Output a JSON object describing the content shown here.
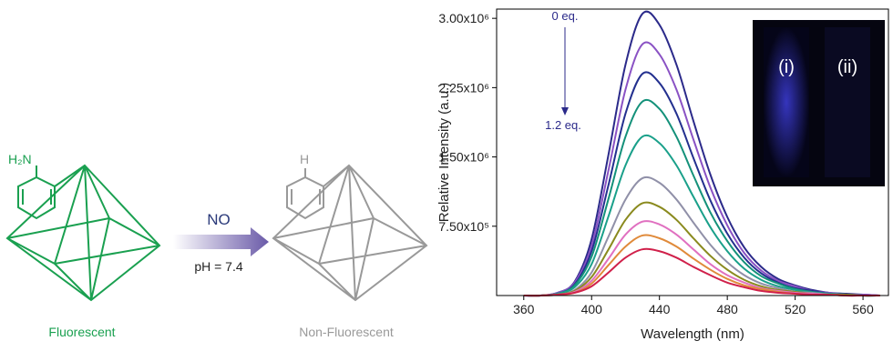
{
  "diagram": {
    "amine_label": "H₂N",
    "left_caption": "Fluorescent",
    "reagent": "NO",
    "condition": "pH = 7.4",
    "h_label": "H",
    "right_caption": "Non-Fluorescent"
  },
  "chart_data": {
    "type": "line",
    "x_label": "Wavelength (nm)",
    "y_label": "Relative Intensity (a.u.)",
    "annotations": [
      "0 eq.",
      "1.2 eq.",
      "(i)",
      "(ii)"
    ],
    "x": [
      360,
      370,
      380,
      390,
      400,
      410,
      420,
      430,
      440,
      450,
      460,
      470,
      480,
      490,
      500,
      510,
      520,
      530,
      540,
      550,
      560,
      570
    ],
    "xlim": [
      344,
      575
    ],
    "xticks": [
      360,
      400,
      440,
      480,
      520,
      560
    ],
    "ylim": [
      0,
      3100000
    ],
    "yticks": [
      {
        "value": 750000,
        "label": "7.50x10⁵"
      },
      {
        "value": 1500000,
        "label": "1.50x10⁶"
      },
      {
        "value": 2250000,
        "label": "2.25x10⁶"
      },
      {
        "value": 3000000,
        "label": "3.00x10⁶"
      }
    ],
    "series": [
      {
        "color": "#2b2a8a",
        "values": [
          0,
          0,
          30000,
          150000,
          610000,
          1530000,
          2500000,
          3050000,
          2930000,
          2500000,
          1890000,
          1310000,
          850000,
          520000,
          310000,
          180000,
          110000,
          60000,
          30000,
          20000,
          10000,
          0
        ]
      },
      {
        "color": "#8a52c4",
        "values": [
          0,
          0,
          30000,
          140000,
          540000,
          1360000,
          2230000,
          2720000,
          2610000,
          2230000,
          1690000,
          1170000,
          760000,
          460000,
          270000,
          160000,
          100000,
          50000,
          30000,
          10000,
          10000,
          0
        ]
      },
      {
        "color": "#23308f",
        "values": [
          0,
          0,
          20000,
          120000,
          480000,
          1200000,
          1970000,
          2400000,
          2300000,
          1970000,
          1490000,
          1030000,
          670000,
          410000,
          240000,
          140000,
          80000,
          50000,
          20000,
          10000,
          0,
          0
        ]
      },
      {
        "color": "#14917a",
        "values": [
          0,
          0,
          20000,
          110000,
          420000,
          1050000,
          1720000,
          2100000,
          2020000,
          1720000,
          1300000,
          900000,
          590000,
          360000,
          210000,
          130000,
          70000,
          40000,
          20000,
          10000,
          0,
          0
        ]
      },
      {
        "color": "#1aa08a",
        "values": [
          0,
          0,
          20000,
          90000,
          340000,
          860000,
          1410000,
          1720000,
          1650000,
          1410000,
          1070000,
          740000,
          480000,
          290000,
          170000,
          100000,
          60000,
          30000,
          20000,
          10000,
          0,
          0
        ]
      },
      {
        "color": "#9090a8",
        "values": [
          0,
          0,
          10000,
          60000,
          250000,
          640000,
          1040000,
          1270000,
          1220000,
          1040000,
          790000,
          550000,
          360000,
          220000,
          130000,
          80000,
          40000,
          30000,
          10000,
          10000,
          0,
          0
        ]
      },
      {
        "color": "#8a8a1e",
        "values": [
          0,
          0,
          10000,
          50000,
          200000,
          500000,
          820000,
          1000000,
          960000,
          820000,
          620000,
          430000,
          280000,
          170000,
          100000,
          60000,
          40000,
          20000,
          10000,
          10000,
          0,
          0
        ]
      },
      {
        "color": "#e070c0",
        "values": [
          0,
          0,
          10000,
          40000,
          160000,
          400000,
          660000,
          800000,
          770000,
          660000,
          500000,
          340000,
          220000,
          140000,
          80000,
          50000,
          30000,
          20000,
          10000,
          0,
          0,
          0
        ]
      },
      {
        "color": "#e08a3a",
        "values": [
          0,
          0,
          10000,
          30000,
          130000,
          330000,
          530000,
          650000,
          620000,
          530000,
          400000,
          280000,
          180000,
          110000,
          70000,
          40000,
          20000,
          10000,
          10000,
          0,
          0,
          0
        ]
      },
      {
        "color": "#d0204a",
        "values": [
          0,
          0,
          10000,
          30000,
          100000,
          250000,
          410000,
          500000,
          480000,
          410000,
          310000,
          220000,
          140000,
          90000,
          50000,
          30000,
          20000,
          10000,
          10000,
          0,
          0,
          0
        ]
      }
    ]
  }
}
